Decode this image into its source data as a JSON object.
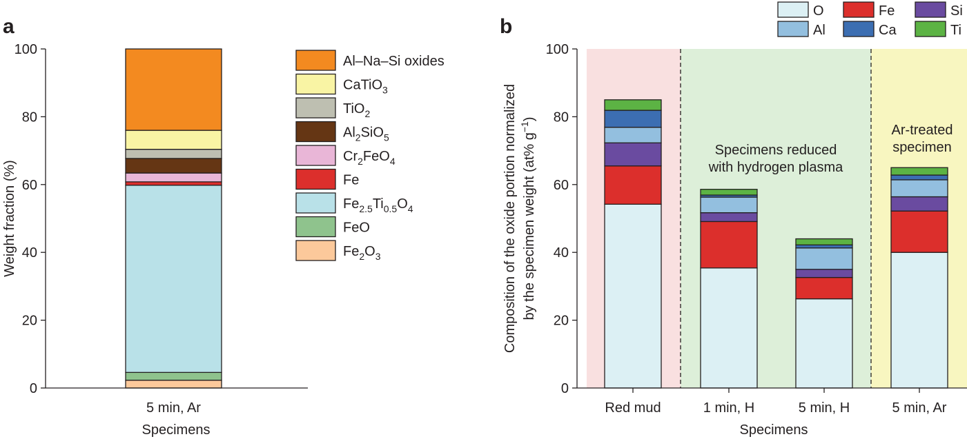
{
  "chart_data": [
    {
      "panel": "a",
      "type": "bar",
      "stacked": true,
      "categories": [
        "5 min, Ar"
      ],
      "xlabel": "Specimens",
      "ylabel": "Weight fraction (%)",
      "ylim": [
        0,
        100
      ],
      "yticks": [
        "0",
        "20",
        "40",
        "60",
        "80",
        "100"
      ],
      "legend_position": "right",
      "series": [
        {
          "name": "Fe2O3",
          "label_parts": [
            [
              "Fe",
              ""
            ],
            [
              "2",
              "sub"
            ],
            [
              "O",
              ""
            ],
            [
              "3",
              "sub"
            ]
          ],
          "color": "#fcc99b",
          "values": [
            2.3
          ]
        },
        {
          "name": "FeO",
          "label_parts": [
            [
              "FeO",
              ""
            ]
          ],
          "color": "#8fc38d",
          "values": [
            2.3
          ]
        },
        {
          "name": "Fe2.5Ti0.5O4",
          "label_parts": [
            [
              "Fe",
              ""
            ],
            [
              "2.5",
              "sub"
            ],
            [
              "Ti",
              ""
            ],
            [
              "0.5",
              "sub"
            ],
            [
              "O",
              ""
            ],
            [
              "4",
              "sub"
            ]
          ],
          "color": "#b9e1e8",
          "values": [
            55.2
          ]
        },
        {
          "name": "Fe",
          "label_parts": [
            [
              "Fe",
              ""
            ]
          ],
          "color": "#dc2f2c",
          "values": [
            1.0
          ]
        },
        {
          "name": "Cr2FeO4",
          "label_parts": [
            [
              "Cr",
              ""
            ],
            [
              "2",
              "sub"
            ],
            [
              "FeO",
              ""
            ],
            [
              "4",
              "sub"
            ]
          ],
          "color": "#e9b6d7",
          "values": [
            2.6
          ]
        },
        {
          "name": "Al2SiO5",
          "label_parts": [
            [
              "Al",
              ""
            ],
            [
              "2",
              "sub"
            ],
            [
              "SiO",
              ""
            ],
            [
              "5",
              "sub"
            ]
          ],
          "color": "#653614",
          "values": [
            4.3
          ]
        },
        {
          "name": "TiO2",
          "label_parts": [
            [
              "TiO",
              ""
            ],
            [
              "2",
              "sub"
            ]
          ],
          "color": "#bebfb1",
          "values": [
            2.7
          ]
        },
        {
          "name": "CaTiO3",
          "label_parts": [
            [
              "CaTiO",
              ""
            ],
            [
              "3",
              "sub"
            ]
          ],
          "color": "#f9f4a4",
          "values": [
            5.6
          ]
        },
        {
          "name": "Al–Na–Si oxides",
          "label_parts": [
            [
              "Al–Na–Si oxides",
              ""
            ]
          ],
          "color": "#f38a20",
          "values": [
            24.0
          ]
        }
      ]
    },
    {
      "panel": "b",
      "type": "bar",
      "stacked": true,
      "categories": [
        "Red mud",
        "1 min, H",
        "5 min, H",
        "5 min, Ar"
      ],
      "xlabel": "Specimens",
      "ylabel_line1": "Composition of the oxide portion normalized",
      "ylabel_line2": "by the specimen weight (at% g",
      "ylabel_sup": "−1",
      "ylabel_end": ")",
      "ylim": [
        0,
        100
      ],
      "yticks": [
        "0",
        "20",
        "40",
        "60",
        "80",
        "100"
      ],
      "legend_position": "top-right",
      "regions": [
        {
          "categories": [
            0
          ],
          "color": "#f9e0e0"
        },
        {
          "categories": [
            1,
            2
          ],
          "color": "#ddefd9"
        },
        {
          "categories": [
            3
          ],
          "color": "#f8f6c0"
        }
      ],
      "annotations": [
        {
          "lines": [
            "Specimens reduced",
            "with hydrogen plasma"
          ]
        },
        {
          "lines": [
            "Ar-treated",
            "specimen"
          ]
        }
      ],
      "series": [
        {
          "name": "O",
          "color": "#dcf0f4",
          "values": [
            54.2,
            35.4,
            26.3,
            40.0
          ]
        },
        {
          "name": "Fe",
          "color": "#dc2f2c",
          "values": [
            11.3,
            13.7,
            6.3,
            12.2
          ]
        },
        {
          "name": "Si",
          "color": "#6a4ba0",
          "values": [
            6.8,
            2.6,
            2.4,
            4.2
          ]
        },
        {
          "name": "Al",
          "color": "#93bfdf",
          "values": [
            4.6,
            4.6,
            6.3,
            5.0
          ]
        },
        {
          "name": "Ca",
          "color": "#3c6eb2",
          "values": [
            5.0,
            0.6,
            0.9,
            1.4
          ]
        },
        {
          "name": "Ti",
          "color": "#5cb344",
          "values": [
            3.1,
            1.7,
            1.8,
            2.2
          ]
        }
      ],
      "legend_order": [
        "O",
        "Fe",
        "Si",
        "Al",
        "Ca",
        "Ti"
      ]
    }
  ],
  "panel_labels": {
    "a": "a",
    "b": "b"
  }
}
